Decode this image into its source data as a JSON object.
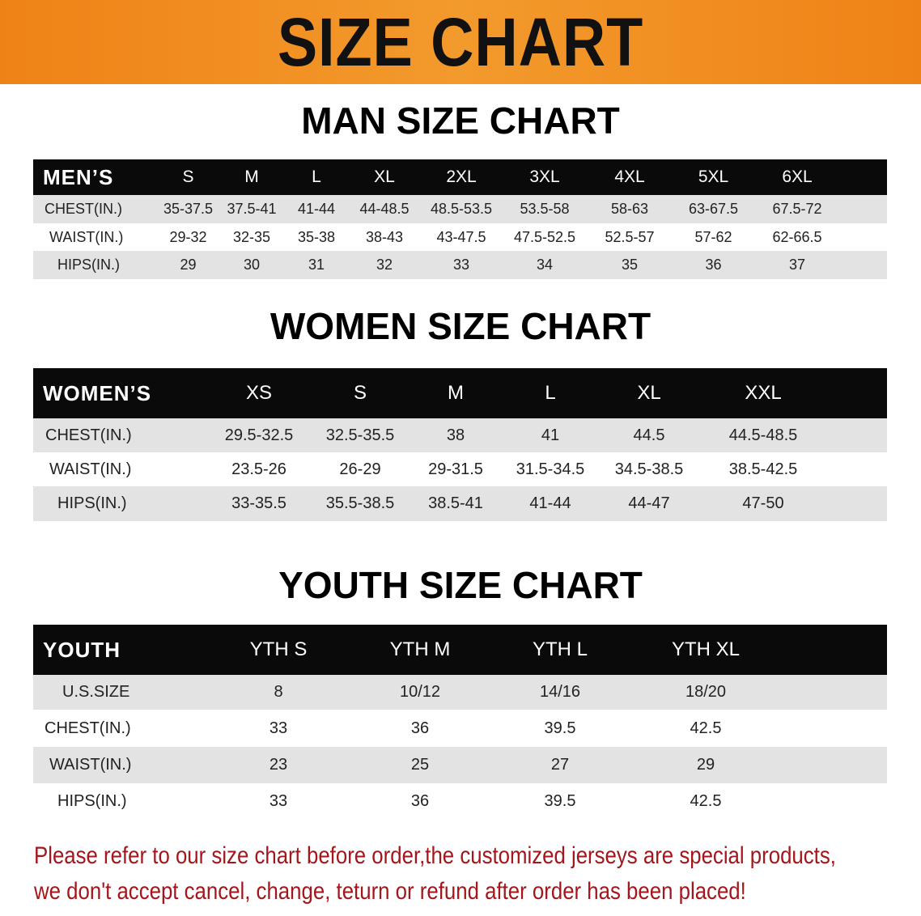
{
  "banner_title": "SIZE CHART",
  "men": {
    "title": "MAN SIZE CHART",
    "header": [
      "MEN’S",
      "S",
      "M",
      "L",
      "XL",
      "2XL",
      "3XL",
      "4XL",
      "5XL",
      "6XL"
    ],
    "rows": [
      [
        "CHEST(IN.)",
        "35-37.5",
        "37.5-41",
        "41-44",
        "44-48.5",
        "48.5-53.5",
        "53.5-58",
        "58-63",
        "63-67.5",
        "67.5-72"
      ],
      [
        "WAIST(IN.)",
        "29-32",
        "32-35",
        "35-38",
        "38-43",
        "43-47.5",
        "47.5-52.5",
        "52.5-57",
        "57-62",
        "62-66.5"
      ],
      [
        "HIPS(IN.)",
        "29",
        "30",
        "31",
        "32",
        "33",
        "34",
        "35",
        "36",
        "37"
      ]
    ]
  },
  "women": {
    "title": "WOMEN SIZE CHART",
    "header": [
      "WOMEN’S",
      "XS",
      "S",
      "M",
      "L",
      "XL",
      "XXL"
    ],
    "rows": [
      [
        "CHEST(IN.)",
        "29.5-32.5",
        "32.5-35.5",
        "38",
        "41",
        "44.5",
        "44.5-48.5"
      ],
      [
        "WAIST(IN.)",
        "23.5-26",
        "26-29",
        "29-31.5",
        "31.5-34.5",
        "34.5-38.5",
        "38.5-42.5"
      ],
      [
        "HIPS(IN.)",
        "33-35.5",
        "35.5-38.5",
        "38.5-41",
        "41-44",
        "44-47",
        "47-50"
      ]
    ]
  },
  "youth": {
    "title": "YOUTH SIZE CHART",
    "header": [
      "YOUTH",
      "YTH S",
      "YTH M",
      "YTH L",
      "YTH XL"
    ],
    "rows": [
      [
        "U.S.SIZE",
        "8",
        "10/12",
        "14/16",
        "18/20"
      ],
      [
        "CHEST(IN.)",
        "33",
        "36",
        "39.5",
        "42.5"
      ],
      [
        "WAIST(IN.)",
        "23",
        "25",
        "27",
        "29"
      ],
      [
        "HIPS(IN.)",
        "33",
        "36",
        "39.5",
        "42.5"
      ]
    ]
  },
  "note": {
    "line1": "Please refer to our size chart before order,the customized jerseys are special products,",
    "line2": "we don't accept cancel, change, teturn or refund after order has been placed!"
  },
  "colors": {
    "banner": "#ef8217",
    "header_bg": "#0a0a0a",
    "row_shade": "#e3e3e3",
    "note": "#a3161b"
  }
}
